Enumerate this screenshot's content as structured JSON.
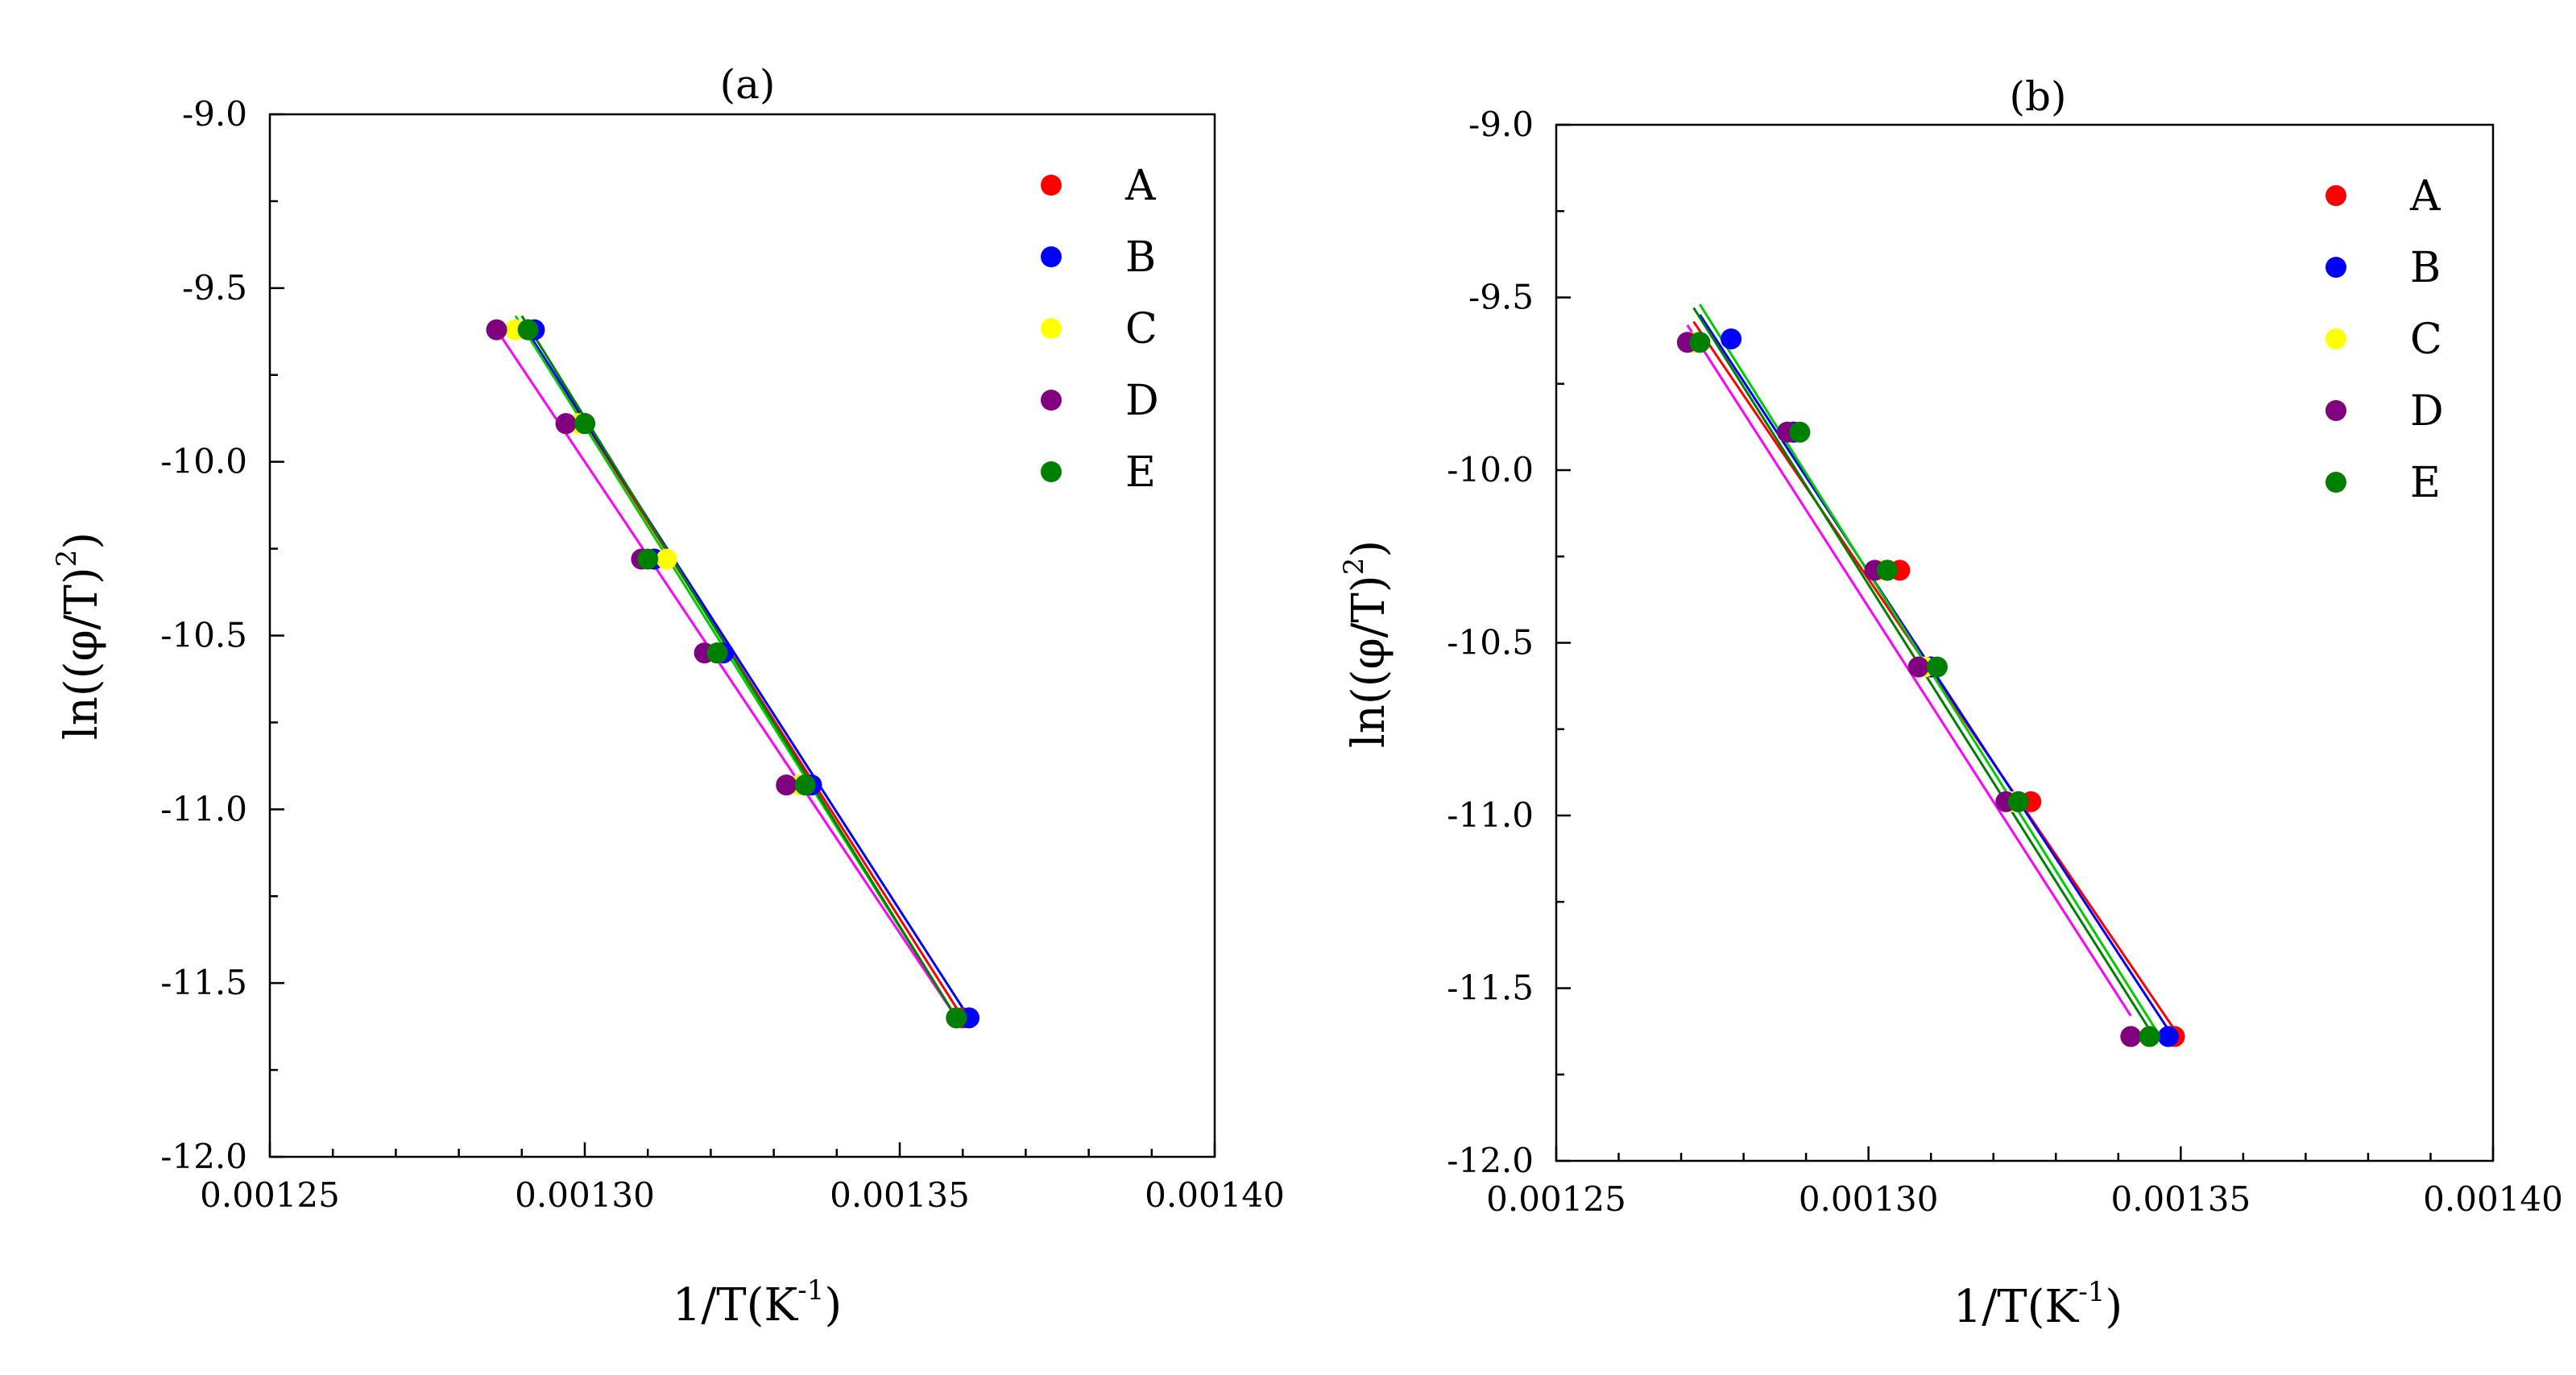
{
  "chart_data": [
    {
      "type": "scatter",
      "title": "(a)",
      "xlabel": "1/T(K",
      "xlabel_sup": "-1",
      "xlabel_end": ")",
      "ylabel": "ln((φ/T)",
      "ylabel_sup": "2",
      "ylabel_end": ")",
      "xlim": [
        0.00125,
        0.0014
      ],
      "ylim": [
        -12.0,
        -9.0
      ],
      "xticks": [
        "0.00125",
        "0.00130",
        "0.00135",
        "0.00140"
      ],
      "yticks": [
        "-9.0",
        "-9.5",
        "-10.0",
        "-10.5",
        "-11.0",
        "-11.5",
        "-12.0"
      ],
      "legend_position": "top-right",
      "series": [
        {
          "name": "A",
          "color": "#ff0000",
          "fit_color": "#ff0000",
          "x": [
            0.001291,
            0.0013,
            0.001311,
            0.001321,
            0.001335,
            0.00136
          ],
          "y": [
            -9.62,
            -9.89,
            -10.28,
            -10.55,
            -10.93,
            -11.6
          ]
        },
        {
          "name": "B",
          "color": "#0000ff",
          "fit_color": "#0000ff",
          "x": [
            0.001292,
            0.0013,
            0.001311,
            0.001322,
            0.001336,
            0.001361
          ],
          "y": [
            -9.62,
            -9.89,
            -10.28,
            -10.55,
            -10.93,
            -11.6
          ]
        },
        {
          "name": "C",
          "color": "#ffff00",
          "fit_color": "#00cc00",
          "x": [
            0.001289,
            0.001299,
            0.001313,
            0.001321,
            0.001334,
            0.001359
          ],
          "y": [
            -9.62,
            -9.89,
            -10.28,
            -10.55,
            -10.93,
            -11.6
          ]
        },
        {
          "name": "D",
          "color": "#800080",
          "fit_color": "#ff00ff",
          "x": [
            0.001286,
            0.001297,
            0.001309,
            0.001319,
            0.001332,
            0.001359
          ],
          "y": [
            -9.62,
            -9.89,
            -10.28,
            -10.55,
            -10.93,
            -11.6
          ]
        },
        {
          "name": "E",
          "color": "#008000",
          "fit_color": "#008000",
          "x": [
            0.001291,
            0.0013,
            0.00131,
            0.001321,
            0.001335,
            0.001359
          ],
          "y": [
            -9.62,
            -9.89,
            -10.28,
            -10.55,
            -10.93,
            -11.6
          ]
        }
      ],
      "fit_lines": [
        {
          "name": "A",
          "x": [
            0.00129,
            0.00136
          ],
          "y": [
            -9.6,
            -11.6
          ]
        },
        {
          "name": "B",
          "x": [
            0.00129,
            0.001361
          ],
          "y": [
            -9.6,
            -11.6
          ]
        },
        {
          "name": "C",
          "x": [
            0.001289,
            0.001359
          ],
          "y": [
            -9.58,
            -11.6
          ]
        },
        {
          "name": "D",
          "x": [
            0.001286,
            0.001359
          ],
          "y": [
            -9.62,
            -11.6
          ]
        },
        {
          "name": "E",
          "x": [
            0.00129,
            0.001359
          ],
          "y": [
            -9.58,
            -11.6
          ]
        }
      ]
    },
    {
      "type": "scatter",
      "title": "(b)",
      "xlabel": "1/T(K",
      "xlabel_sup": "-1",
      "xlabel_end": ")",
      "ylabel": "ln((φ/T)",
      "ylabel_sup": "2",
      "ylabel_end": ")",
      "xlim": [
        0.00125,
        0.0014
      ],
      "ylim": [
        -12.0,
        -9.0
      ],
      "xticks": [
        "0.00125",
        "0.00130",
        "0.00135",
        "0.00140"
      ],
      "yticks": [
        "-9.0",
        "-9.5",
        "-10.0",
        "-10.5",
        "-11.0",
        "-11.5",
        "-12.0"
      ],
      "legend_position": "top-right",
      "series": [
        {
          "name": "A",
          "color": "#ff0000",
          "fit_color": "#ff0000",
          "x": [
            0.001272,
            0.001288,
            0.001305,
            0.00131,
            0.001326,
            0.001349
          ],
          "y": [
            -9.63,
            -9.89,
            -10.29,
            -10.57,
            -10.96,
            -11.64
          ]
        },
        {
          "name": "B",
          "color": "#0000ff",
          "fit_color": "#0000ff",
          "x": [
            0.001278,
            0.001288,
            0.001303,
            0.00131,
            0.001324,
            0.001348
          ],
          "y": [
            -9.62,
            -9.89,
            -10.29,
            -10.57,
            -10.96,
            -11.64
          ]
        },
        {
          "name": "C",
          "color": "#ffff00",
          "fit_color": "#00cc00",
          "x": [
            0.001272,
            0.001287,
            0.001302,
            0.001309,
            0.001323,
            0.001345
          ],
          "y": [
            -9.63,
            -9.89,
            -10.29,
            -10.57,
            -10.96,
            -11.64
          ]
        },
        {
          "name": "D",
          "color": "#800080",
          "fit_color": "#ff00ff",
          "x": [
            0.001271,
            0.001287,
            0.001301,
            0.001308,
            0.001322,
            0.001342
          ],
          "y": [
            -9.63,
            -9.89,
            -10.29,
            -10.57,
            -10.96,
            -11.64
          ]
        },
        {
          "name": "E",
          "color": "#008000",
          "fit_color": "#008000",
          "x": [
            0.001273,
            0.001289,
            0.001303,
            0.001311,
            0.001324,
            0.001345
          ],
          "y": [
            -9.63,
            -9.89,
            -10.29,
            -10.57,
            -10.96,
            -11.64
          ]
        }
      ],
      "fit_lines": [
        {
          "name": "A",
          "x": [
            0.001272,
            0.001349
          ],
          "y": [
            -9.57,
            -11.62
          ]
        },
        {
          "name": "B",
          "x": [
            0.001273,
            0.001348
          ],
          "y": [
            -9.55,
            -11.62
          ]
        },
        {
          "name": "C",
          "x": [
            0.001273,
            0.001346
          ],
          "y": [
            -9.52,
            -11.62
          ]
        },
        {
          "name": "D",
          "x": [
            0.001271,
            0.001342
          ],
          "y": [
            -9.58,
            -11.58
          ]
        },
        {
          "name": "E",
          "x": [
            0.001272,
            0.001345
          ],
          "y": [
            -9.53,
            -11.62
          ]
        }
      ]
    }
  ]
}
